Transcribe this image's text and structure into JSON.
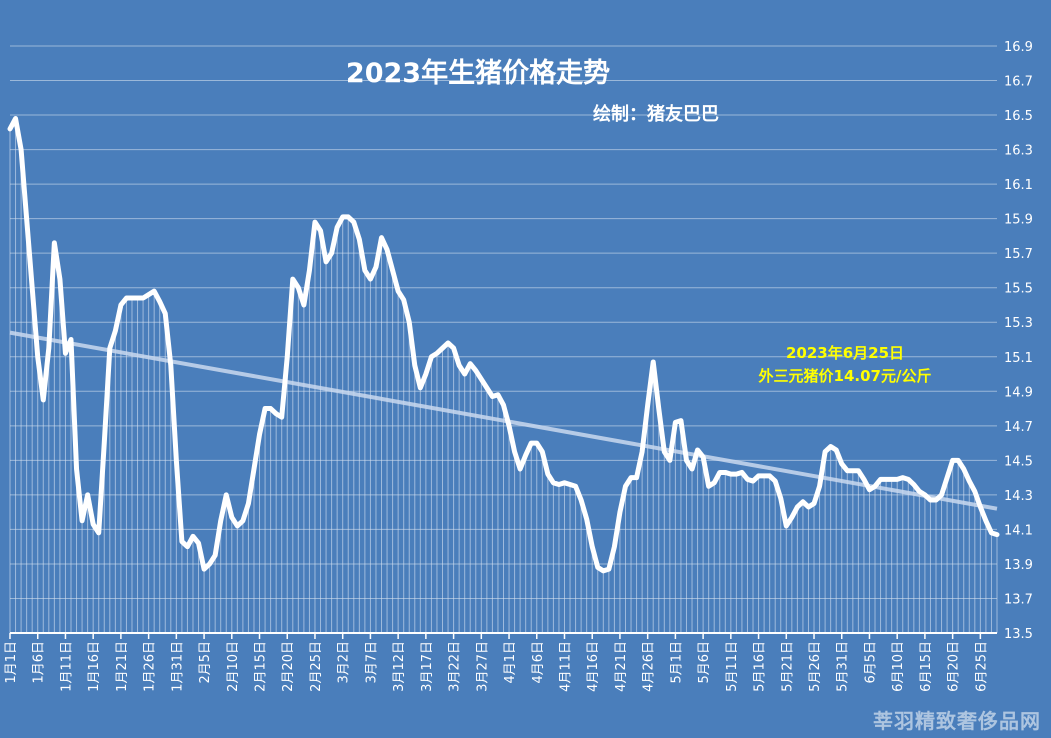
{
  "chart_data": {
    "type": "line",
    "title": "2023年生猪价格走势",
    "subtitle": "绘制：猪友巴巴",
    "annotation": [
      "2023年6月25日",
      "外三元猪价14.07元/公斤"
    ],
    "ylim": [
      13.5,
      16.9
    ],
    "yticks": [
      13.5,
      13.7,
      13.9,
      14.1,
      14.3,
      14.5,
      14.7,
      14.9,
      15.1,
      15.3,
      15.5,
      15.7,
      15.9,
      16.1,
      16.3,
      16.5,
      16.7,
      16.9
    ],
    "x_tick_labels": [
      "1月1日",
      "1月6日",
      "1月11日",
      "1月16日",
      "1月21日",
      "1月26日",
      "1月31日",
      "2月5日",
      "2月10日",
      "2月15日",
      "2月20日",
      "2月25日",
      "3月2日",
      "3月7日",
      "3月12日",
      "3月17日",
      "3月22日",
      "3月27日",
      "4月1日",
      "4月6日",
      "4月11日",
      "4月16日",
      "4月21日",
      "4月26日",
      "5月1日",
      "5月6日",
      "5月11日",
      "5月16日",
      "5月21日",
      "5月26日",
      "5月31日",
      "6月5日",
      "6月10日",
      "6月15日",
      "6月20日",
      "6月25日"
    ],
    "series": [
      {
        "values": [
          16.42,
          16.48,
          16.3,
          15.9,
          15.5,
          15.1,
          14.85,
          15.15,
          15.76,
          15.55,
          15.12,
          15.2,
          14.45,
          14.15,
          14.3,
          14.13,
          14.08,
          14.6,
          15.15,
          15.25,
          15.4,
          15.44,
          15.44,
          15.44,
          15.44,
          15.46,
          15.48,
          15.42,
          15.35,
          15.05,
          14.5,
          14.03,
          14.0,
          14.06,
          14.02,
          13.87,
          13.9,
          13.95,
          14.15,
          14.3,
          14.17,
          14.12,
          14.15,
          14.25,
          14.45,
          14.65,
          14.8,
          14.8,
          14.77,
          14.75,
          15.1,
          15.55,
          15.5,
          15.4,
          15.6,
          15.88,
          15.83,
          15.65,
          15.7,
          15.85,
          15.91,
          15.91,
          15.88,
          15.78,
          15.6,
          15.55,
          15.62,
          15.79,
          15.72,
          15.6,
          15.48,
          15.43,
          15.3,
          15.05,
          14.92,
          15.0,
          15.1,
          15.12,
          15.15,
          15.18,
          15.15,
          15.05,
          15.0,
          15.06,
          15.02,
          14.97,
          14.92,
          14.87,
          14.88,
          14.82,
          14.7,
          14.55,
          14.45,
          14.53,
          14.6,
          14.6,
          14.55,
          14.42,
          14.37,
          14.36,
          14.37,
          14.36,
          14.35,
          14.27,
          14.16,
          14.0,
          13.88,
          13.86,
          13.87,
          14.0,
          14.2,
          14.35,
          14.4,
          14.4,
          14.55,
          14.82,
          15.07,
          14.8,
          14.55,
          14.5,
          14.72,
          14.73,
          14.5,
          14.45,
          14.56,
          14.52,
          14.35,
          14.37,
          14.43,
          14.43,
          14.42,
          14.42,
          14.43,
          14.39,
          14.38,
          14.41,
          14.41,
          14.41,
          14.38,
          14.28,
          14.12,
          14.17,
          14.23,
          14.26,
          14.23,
          14.25,
          14.35,
          14.55,
          14.58,
          14.56,
          14.48,
          14.44,
          14.44,
          14.44,
          14.39,
          14.33,
          14.35,
          14.39,
          14.39,
          14.39,
          14.39,
          14.4,
          14.39,
          14.36,
          14.32,
          14.3,
          14.27,
          14.27,
          14.3,
          14.4,
          14.5,
          14.5,
          14.45,
          14.38,
          14.32,
          14.23,
          14.15,
          14.08,
          14.07
        ]
      },
      {
        "values_at_ends": [
          15.24,
          14.22
        ]
      }
    ],
    "grid": true
  }
}
